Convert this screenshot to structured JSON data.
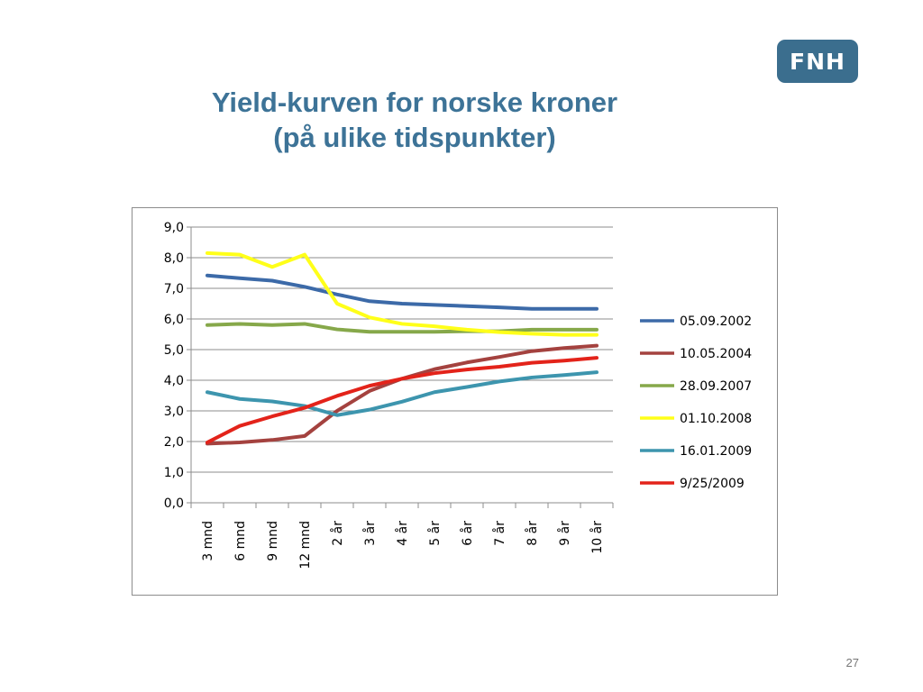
{
  "logo": {
    "text": "FNH"
  },
  "title": {
    "line1": "Yield-kurven for norske kroner",
    "line2": "(på ulike tidspunkter)"
  },
  "page_number": "27",
  "chart_data": {
    "type": "line",
    "title": "Yield-kurven for norske kroner (på ulike tidspunkter)",
    "categories": [
      "3 mnd",
      "6 mnd",
      "9 mnd",
      "12 mnd",
      "2 år",
      "3 år",
      "4 år",
      "5 år",
      "6 år",
      "7 år",
      "8 år",
      "9 år",
      "10 år"
    ],
    "ylim": [
      0,
      9
    ],
    "yticks": [
      "0,0",
      "1,0",
      "2,0",
      "3,0",
      "4,0",
      "5,0",
      "6,0",
      "7,0",
      "8,0",
      "9,0"
    ],
    "grid": true,
    "legend_position": "right",
    "series": [
      {
        "name": "05.09.2002",
        "color": "#3c6aa8",
        "values": [
          7.42,
          7.33,
          7.25,
          7.05,
          6.8,
          6.58,
          6.5,
          6.46,
          6.42,
          6.38,
          6.33,
          6.33,
          6.33
        ]
      },
      {
        "name": "10.05.2004",
        "color": "#a4423f",
        "values": [
          1.93,
          1.97,
          2.05,
          2.18,
          3.0,
          3.65,
          4.05,
          4.36,
          4.58,
          4.76,
          4.95,
          5.05,
          5.13
        ]
      },
      {
        "name": "28.09.2007",
        "color": "#86a84a",
        "values": [
          5.8,
          5.84,
          5.8,
          5.84,
          5.66,
          5.58,
          5.58,
          5.58,
          5.6,
          5.6,
          5.65,
          5.65,
          5.65
        ]
      },
      {
        "name": "01.10.2008",
        "color": "#ffff19",
        "values": [
          8.15,
          8.1,
          7.7,
          8.1,
          6.5,
          6.05,
          5.84,
          5.76,
          5.65,
          5.57,
          5.52,
          5.48,
          5.48
        ]
      },
      {
        "name": "16.01.2009",
        "color": "#3d95ae",
        "values": [
          3.61,
          3.39,
          3.31,
          3.16,
          2.86,
          3.04,
          3.3,
          3.61,
          3.78,
          3.96,
          4.09,
          4.17,
          4.26
        ]
      },
      {
        "name": "9/25/2009",
        "color": "#e3231a",
        "values": [
          1.97,
          2.51,
          2.82,
          3.1,
          3.49,
          3.82,
          4.05,
          4.23,
          4.35,
          4.44,
          4.57,
          4.64,
          4.73
        ]
      }
    ]
  }
}
